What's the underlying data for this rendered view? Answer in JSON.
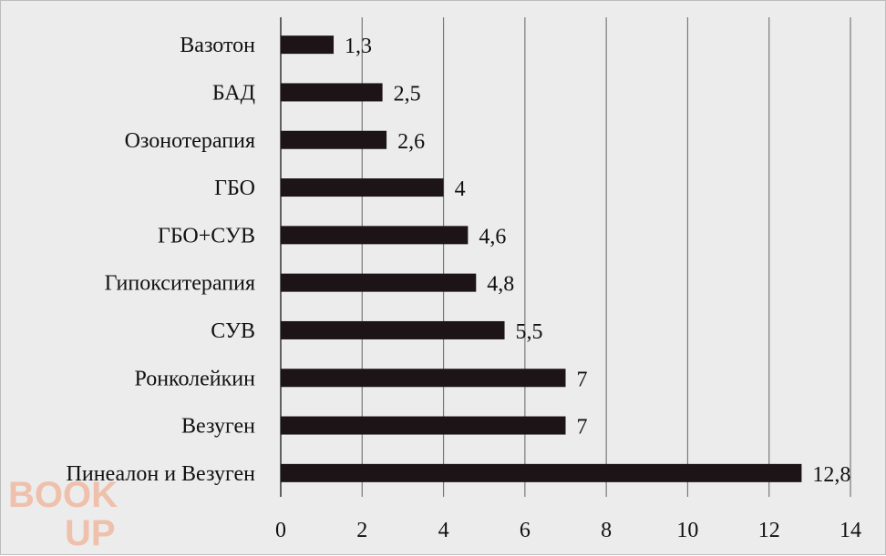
{
  "chart_data": {
    "type": "bar",
    "orientation": "horizontal",
    "categories": [
      "Вазотон",
      "БАД",
      "Озонотерапия",
      "ГБО",
      "ГБО+СУВ",
      "Гипокситерапия",
      "СУВ",
      "Ронколейкин",
      "Везуген",
      "Пинеалон и Везуген"
    ],
    "values": [
      1.3,
      2.5,
      2.6,
      4,
      4.6,
      4.8,
      5.5,
      7,
      7,
      12.8
    ],
    "value_labels": [
      "1,3",
      "2,5",
      "2,6",
      "4",
      "4,6",
      "4,8",
      "5,5",
      "7",
      "7",
      "12,8"
    ],
    "xlim": [
      0,
      14
    ],
    "xticks": [
      "0",
      "2",
      "4",
      "6",
      "8",
      "10",
      "12",
      "14"
    ],
    "grid": "vertical",
    "title": "",
    "xlabel": "",
    "ylabel": "",
    "colors": {
      "bar": "#1c1416",
      "background": "#ececec",
      "grid": "#7a7a7a"
    }
  },
  "watermark": {
    "text": "BOOK UP",
    "color": "#f0b9a0"
  }
}
